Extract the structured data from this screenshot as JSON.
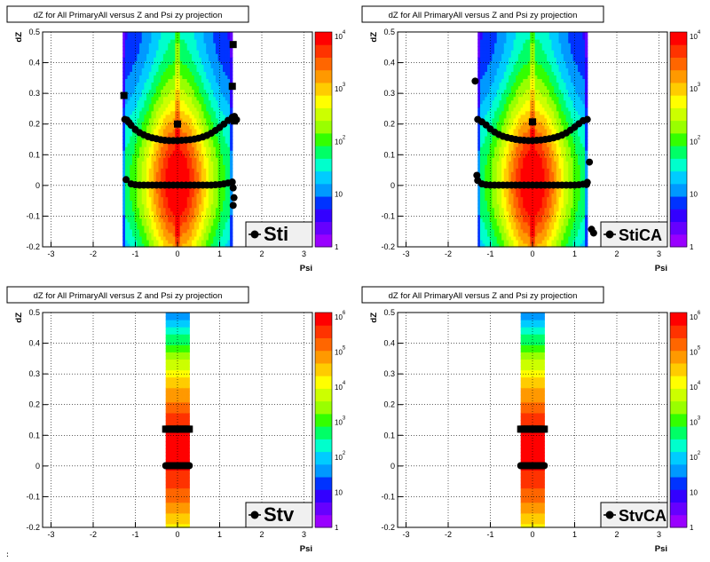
{
  "page": {
    "footer_text": ":"
  },
  "colors": {
    "palette": [
      "#9900ff",
      "#6600ff",
      "#3300ff",
      "#0033ff",
      "#0099ff",
      "#00ccff",
      "#00ffcc",
      "#00ff66",
      "#33ff00",
      "#99ff00",
      "#ccff00",
      "#ffff00",
      "#ffcc00",
      "#ff9900",
      "#ff6600",
      "#ff3300",
      "#ff0000"
    ],
    "marker": "#000000",
    "frame": "#000000",
    "grid": "#000000",
    "legend_bg": "#f0f0f0"
  },
  "chart_data": [
    {
      "type": "heatmap",
      "title": "dZ for All PrimaryAll versus Z and Psi zy projection",
      "xlabel": "Psi",
      "ylabel": "dZ",
      "xlim": [
        -3.2,
        3.2
      ],
      "ylim": [
        -0.2,
        0.5
      ],
      "xticks": [
        "-3",
        "-2",
        "-1",
        "0",
        "1",
        "2",
        "3"
      ],
      "yticks": [
        "-0.2",
        "-0.1",
        "0",
        "0.1",
        "0.2",
        "0.3",
        "0.4",
        "0.5"
      ],
      "grid": true,
      "heatmap": {
        "psi_range": [
          -1.3,
          1.3
        ],
        "color_scale": "log",
        "max_level": 4
      },
      "colorbar": {
        "labels": [
          {
            "base": "1",
            "exp": ""
          },
          {
            "base": "10",
            "exp": ""
          },
          {
            "base": "10",
            "exp": "2"
          },
          {
            "base": "10",
            "exp": "3"
          },
          {
            "base": "10",
            "exp": "4"
          }
        ]
      },
      "legend": {
        "label": "Sti",
        "position": "bottom-right"
      },
      "series": [
        {
          "values": [
            [
              -1.2,
              0.213
            ],
            [
              -1.15,
              0.205
            ],
            [
              -1.1,
              0.196
            ],
            [
              -1.0,
              0.182
            ],
            [
              -0.9,
              0.172
            ],
            [
              -0.8,
              0.165
            ],
            [
              -0.7,
              0.159
            ],
            [
              -0.6,
              0.155
            ],
            [
              -0.5,
              0.152
            ],
            [
              -0.4,
              0.149
            ],
            [
              -0.3,
              0.147
            ],
            [
              -0.2,
              0.146
            ],
            [
              -0.1,
              0.146
            ],
            [
              0.0,
              0.146
            ],
            [
              0.1,
              0.147
            ],
            [
              0.2,
              0.148
            ],
            [
              0.3,
              0.149
            ],
            [
              0.4,
              0.151
            ],
            [
              0.5,
              0.154
            ],
            [
              0.6,
              0.158
            ],
            [
              0.7,
              0.163
            ],
            [
              0.8,
              0.17
            ],
            [
              0.9,
              0.179
            ],
            [
              1.0,
              0.189
            ],
            [
              1.1,
              0.2
            ],
            [
              1.2,
              0.212
            ],
            [
              1.3,
              0.222
            ],
            [
              1.35,
              0.225
            ],
            [
              1.4,
              0.214
            ],
            [
              -1.25,
              0.215
            ],
            [
              -1.22,
              0.019
            ],
            [
              -1.1,
              0.005
            ],
            [
              -1.0,
              0.002
            ],
            [
              -0.9,
              0.001
            ],
            [
              -0.8,
              0.001
            ],
            [
              -0.7,
              0.001
            ],
            [
              -0.6,
              0.001
            ],
            [
              -0.5,
              0.001
            ],
            [
              -0.4,
              0.001
            ],
            [
              -0.3,
              0.001
            ],
            [
              -0.2,
              0.001
            ],
            [
              -0.1,
              0.001
            ],
            [
              0.0,
              0.001
            ],
            [
              0.1,
              0.001
            ],
            [
              0.2,
              0.001
            ],
            [
              0.3,
              0.001
            ],
            [
              0.4,
              0.001
            ],
            [
              0.5,
              0.001
            ],
            [
              0.6,
              0.001
            ],
            [
              0.7,
              0.001
            ],
            [
              0.8,
              0.001
            ],
            [
              0.9,
              0.002
            ],
            [
              1.0,
              0.003
            ],
            [
              1.1,
              0.005
            ],
            [
              1.2,
              0.008
            ],
            [
              1.3,
              0.011
            ],
            [
              1.32,
              -0.008
            ],
            [
              1.34,
              -0.04
            ],
            [
              1.32,
              -0.065
            ]
          ]
        },
        {
          "values": [
            [
              -1.27,
              0.293
            ],
            [
              0.0,
              0.2
            ],
            [
              1.3,
              0.323
            ],
            [
              1.32,
              0.459
            ],
            [
              1.35,
              0.21
            ]
          ],
          "marker": "square"
        }
      ]
    },
    {
      "type": "heatmap",
      "title": "dZ for All PrimaryAll versus Z and Psi zy projection",
      "xlabel": "Psi",
      "ylabel": "dZ",
      "xlim": [
        -3.2,
        3.2
      ],
      "ylim": [
        -0.2,
        0.5
      ],
      "xticks": [
        "-3",
        "-2",
        "-1",
        "0",
        "1",
        "2",
        "3"
      ],
      "yticks": [
        "-0.2",
        "-0.1",
        "0",
        "0.1",
        "0.2",
        "0.3",
        "0.4",
        "0.5"
      ],
      "grid": true,
      "heatmap": {
        "psi_range": [
          -1.3,
          1.3
        ],
        "color_scale": "log",
        "max_level": 4
      },
      "colorbar": {
        "labels": [
          {
            "base": "1",
            "exp": ""
          },
          {
            "base": "10",
            "exp": ""
          },
          {
            "base": "10",
            "exp": "2"
          },
          {
            "base": "10",
            "exp": "3"
          },
          {
            "base": "10",
            "exp": "4"
          }
        ]
      },
      "legend": {
        "label": "StiCA",
        "position": "bottom-right"
      },
      "series": [
        {
          "values": [
            [
              -1.3,
              0.215
            ],
            [
              -1.2,
              0.207
            ],
            [
              -1.1,
              0.197
            ],
            [
              -1.0,
              0.184
            ],
            [
              -0.9,
              0.174
            ],
            [
              -0.8,
              0.166
            ],
            [
              -0.7,
              0.16
            ],
            [
              -0.6,
              0.156
            ],
            [
              -0.5,
              0.153
            ],
            [
              -0.4,
              0.15
            ],
            [
              -0.3,
              0.148
            ],
            [
              -0.2,
              0.147
            ],
            [
              -0.1,
              0.146
            ],
            [
              0.0,
              0.146
            ],
            [
              0.1,
              0.147
            ],
            [
              0.2,
              0.148
            ],
            [
              0.3,
              0.15
            ],
            [
              0.4,
              0.152
            ],
            [
              0.5,
              0.155
            ],
            [
              0.6,
              0.159
            ],
            [
              0.7,
              0.164
            ],
            [
              0.8,
              0.171
            ],
            [
              0.9,
              0.18
            ],
            [
              1.0,
              0.19
            ],
            [
              1.1,
              0.201
            ],
            [
              1.2,
              0.211
            ],
            [
              1.3,
              0.215
            ],
            [
              -1.36,
              0.34
            ],
            [
              -1.32,
              0.033
            ],
            [
              -1.3,
              0.016
            ],
            [
              -1.2,
              0.005
            ],
            [
              -1.1,
              0.002
            ],
            [
              -1.0,
              0.001
            ],
            [
              -0.9,
              0.001
            ],
            [
              -0.8,
              0.001
            ],
            [
              -0.7,
              0.001
            ],
            [
              -0.6,
              0.001
            ],
            [
              -0.5,
              0.001
            ],
            [
              -0.4,
              0.001
            ],
            [
              -0.3,
              0.001
            ],
            [
              -0.2,
              0.001
            ],
            [
              -0.1,
              0.001
            ],
            [
              0.0,
              0.001
            ],
            [
              0.1,
              0.001
            ],
            [
              0.2,
              0.001
            ],
            [
              0.3,
              0.001
            ],
            [
              0.4,
              0.001
            ],
            [
              0.5,
              0.001
            ],
            [
              0.6,
              0.001
            ],
            [
              0.7,
              0.001
            ],
            [
              0.8,
              0.001
            ],
            [
              0.9,
              0.001
            ],
            [
              1.0,
              0.001
            ],
            [
              1.1,
              0.002
            ],
            [
              1.2,
              0.004
            ],
            [
              1.3,
              0.01
            ],
            [
              1.35,
              0.076
            ],
            [
              1.4,
              -0.143
            ],
            [
              1.45,
              -0.155
            ],
            [
              1.28,
              0.003
            ]
          ]
        },
        {
          "values": [
            [
              0.0,
              0.207
            ]
          ],
          "marker": "square"
        }
      ]
    },
    {
      "type": "heatmap",
      "title": "dZ for All PrimaryAll versus Z and Psi zy projection",
      "xlabel": "Psi",
      "ylabel": "dZ",
      "xlim": [
        -3.2,
        3.2
      ],
      "ylim": [
        -0.2,
        0.5
      ],
      "xticks": [
        "-3",
        "-2",
        "-1",
        "0",
        "1",
        "2",
        "3"
      ],
      "yticks": [
        "-0.2",
        "-0.1",
        "0",
        "0.1",
        "0.2",
        "0.3",
        "0.4",
        "0.5"
      ],
      "grid": true,
      "heatmap": {
        "psi_range": [
          -0.28,
          0.28
        ],
        "color_scale": "log",
        "max_level": 6
      },
      "colorbar": {
        "labels": [
          {
            "base": "1",
            "exp": ""
          },
          {
            "base": "10",
            "exp": ""
          },
          {
            "base": "10",
            "exp": "2"
          },
          {
            "base": "10",
            "exp": "3"
          },
          {
            "base": "10",
            "exp": "4"
          },
          {
            "base": "10",
            "exp": "5"
          },
          {
            "base": "10",
            "exp": "6"
          }
        ]
      },
      "legend": {
        "label": "Stv",
        "position": "bottom-right"
      },
      "series": [
        {
          "values": [
            [
              -0.28,
              0.001
            ],
            [
              -0.24,
              0.001
            ],
            [
              -0.2,
              0.001
            ],
            [
              -0.16,
              0.001
            ],
            [
              -0.12,
              0.001
            ],
            [
              -0.08,
              0.001
            ],
            [
              -0.04,
              0.001
            ],
            [
              0.0,
              0.001
            ],
            [
              0.04,
              0.001
            ],
            [
              0.08,
              0.001
            ],
            [
              0.12,
              0.001
            ],
            [
              0.16,
              0.001
            ],
            [
              0.2,
              0.001
            ],
            [
              0.24,
              0.001
            ],
            [
              0.28,
              0.001
            ]
          ]
        },
        {
          "values": [
            [
              -0.28,
              0.12
            ],
            [
              -0.24,
              0.12
            ],
            [
              -0.2,
              0.12
            ],
            [
              -0.16,
              0.12
            ],
            [
              -0.12,
              0.12
            ],
            [
              -0.08,
              0.12
            ],
            [
              -0.04,
              0.12
            ],
            [
              0.0,
              0.12
            ],
            [
              0.04,
              0.12
            ],
            [
              0.08,
              0.12
            ],
            [
              0.12,
              0.12
            ],
            [
              0.16,
              0.12
            ],
            [
              0.2,
              0.12
            ],
            [
              0.24,
              0.12
            ],
            [
              0.28,
              0.12
            ]
          ],
          "marker": "square"
        }
      ]
    },
    {
      "type": "heatmap",
      "title": "dZ for All PrimaryAll versus Z and Psi zy projection",
      "xlabel": "Psi",
      "ylabel": "dZ",
      "xlim": [
        -3.2,
        3.2
      ],
      "ylim": [
        -0.2,
        0.5
      ],
      "xticks": [
        "-3",
        "-2",
        "-1",
        "0",
        "1",
        "2",
        "3"
      ],
      "yticks": [
        "-0.2",
        "-0.1",
        "0",
        "0.1",
        "0.2",
        "0.3",
        "0.4",
        "0.5"
      ],
      "grid": true,
      "heatmap": {
        "psi_range": [
          -0.28,
          0.28
        ],
        "color_scale": "log",
        "max_level": 6
      },
      "colorbar": {
        "labels": [
          {
            "base": "1",
            "exp": ""
          },
          {
            "base": "10",
            "exp": ""
          },
          {
            "base": "10",
            "exp": "2"
          },
          {
            "base": "10",
            "exp": "3"
          },
          {
            "base": "10",
            "exp": "4"
          },
          {
            "base": "10",
            "exp": "5"
          },
          {
            "base": "10",
            "exp": "6"
          }
        ]
      },
      "legend": {
        "label": "StvCA",
        "position": "bottom-right"
      },
      "series": [
        {
          "values": [
            [
              -0.28,
              0.001
            ],
            [
              -0.24,
              0.001
            ],
            [
              -0.2,
              0.001
            ],
            [
              -0.16,
              0.001
            ],
            [
              -0.12,
              0.001
            ],
            [
              -0.08,
              0.001
            ],
            [
              -0.04,
              0.001
            ],
            [
              0.0,
              0.001
            ],
            [
              0.04,
              0.001
            ],
            [
              0.08,
              0.001
            ],
            [
              0.12,
              0.001
            ],
            [
              0.16,
              0.001
            ],
            [
              0.2,
              0.001
            ],
            [
              0.24,
              0.001
            ],
            [
              0.28,
              0.001
            ]
          ]
        },
        {
          "values": [
            [
              -0.28,
              0.12
            ],
            [
              -0.24,
              0.12
            ],
            [
              -0.2,
              0.12
            ],
            [
              -0.16,
              0.12
            ],
            [
              -0.12,
              0.12
            ],
            [
              -0.08,
              0.12
            ],
            [
              -0.04,
              0.12
            ],
            [
              0.0,
              0.12
            ],
            [
              0.04,
              0.12
            ],
            [
              0.08,
              0.12
            ],
            [
              0.12,
              0.12
            ],
            [
              0.16,
              0.12
            ],
            [
              0.2,
              0.12
            ],
            [
              0.24,
              0.12
            ],
            [
              0.28,
              0.12
            ]
          ],
          "marker": "square"
        }
      ]
    }
  ]
}
